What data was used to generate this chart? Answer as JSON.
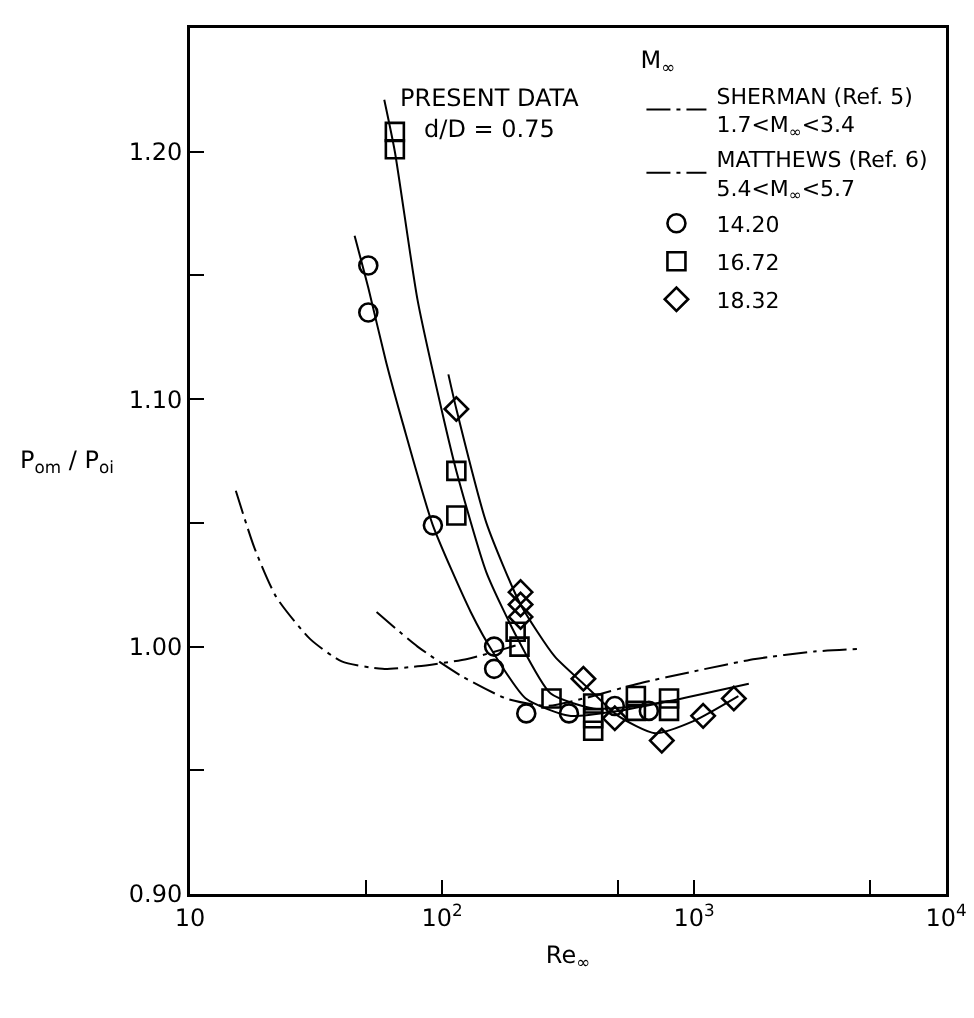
{
  "chart_data": {
    "type": "scatter",
    "xlabel": "Re$_{∞}$",
    "ylabel": "P$_{om}$ / P$_{oi}$",
    "legend_title": "M$_{∞}$",
    "annotations": [
      "PRESENT DATA\nd/D = 0.75"
    ],
    "log": "x",
    "grid": false,
    "legend": "top right",
    "xlim": [
      10,
      10000
    ],
    "xticks": [
      10,
      {
        "value": 50,
        "label": null
      },
      {
        "value": 100,
        "label": "10$^{2}$"
      },
      {
        "value": 500,
        "label": null
      },
      {
        "value": 1000,
        "label": "10$^{3}$"
      },
      {
        "value": 5000,
        "label": null
      },
      {
        "value": 10000,
        "label": "10$^{4}$"
      }
    ],
    "ylim": [
      0.9,
      1.25
    ],
    "yticks": [
      {
        "value": 0.9,
        "label": "0.90"
      },
      {
        "value": 0.95,
        "label": null
      },
      {
        "value": 1.0,
        "label": "1.00"
      },
      {
        "value": 1.05,
        "label": null
      },
      {
        "value": 1.1,
        "label": "1.10"
      },
      {
        "value": 1.15,
        "label": null
      },
      {
        "value": 1.2,
        "label": "1.20"
      }
    ],
    "series": [
      {
        "name": "14.20",
        "marker": "circle",
        "color": "#000000",
        "x": [
          51,
          51,
          92,
          161,
          161,
          216,
          319,
          485,
          662
        ],
        "values": [
          1.154,
          1.135,
          1.049,
          1.0,
          0.991,
          0.973,
          0.973,
          0.976,
          0.974
        ]
      },
      {
        "name": "16.72",
        "marker": "square",
        "color": "#000000",
        "x": [
          65,
          65,
          114,
          114,
          196,
          203,
          272,
          398,
          398,
          398,
          588,
          588,
          796,
          796
        ],
        "values": [
          1.208,
          1.201,
          1.071,
          1.053,
          1.006,
          1.0,
          0.979,
          0.977,
          0.971,
          0.966,
          0.98,
          0.974,
          0.979,
          0.974
        ]
      },
      {
        "name": "18.32",
        "marker": "diamond",
        "color": "#000000",
        "x": [
          114,
          205,
          205,
          205,
          364,
          485,
          745,
          1087,
          1439
        ],
        "values": [
          1.096,
          1.022,
          1.017,
          1.012,
          0.987,
          0.971,
          0.962,
          0.972,
          0.979
        ]
      },
      {
        "name": "SHERMAN (Ref. 5)\n1.7<M$_{∞}$<3.4",
        "type": "line",
        "marker": "none",
        "line_style": "dashed",
        "color": "#000000",
        "x": [
          15.2,
          18,
          22,
          30,
          40,
          58,
          80,
          126,
          205
        ],
        "values": [
          1.063,
          1.04,
          1.02,
          1.003,
          0.994,
          0.991,
          0.992,
          0.995,
          1.001
        ]
      },
      {
        "name": "MATTHEWS (Ref. 6)\n5.4<M$_{∞}$<5.7",
        "type": "line",
        "marker": "none",
        "line_style": "dashed",
        "color": "#000000",
        "x": [
          55,
          80,
          120,
          180,
          260,
          364,
          600,
          1000,
          1750,
          3000,
          4430
        ],
        "values": [
          1.014,
          1.0,
          0.988,
          0.979,
          0.976,
          0.979,
          0.985,
          0.99,
          0.995,
          0.998,
          0.999
        ]
      },
      {
        "type": "line",
        "marker": "none",
        "line_style": "solid",
        "color": "#000000",
        "x": [
          45,
          51,
          60,
          70,
          92,
          130,
          161,
          215,
          320,
          500,
          800,
          1650
        ],
        "values": [
          1.166,
          1.145,
          1.115,
          1.09,
          1.049,
          1.014,
          0.997,
          0.979,
          0.972,
          0.974,
          0.978,
          0.985
        ]
      },
      {
        "type": "line",
        "marker": "none",
        "line_style": "solid",
        "color": "#000000",
        "x": [
          59,
          65,
          80,
          100,
          114,
          150,
          200,
          270,
          400,
          600,
          800
        ],
        "values": [
          1.221,
          1.2,
          1.14,
          1.095,
          1.071,
          1.03,
          1.003,
          0.981,
          0.975,
          0.976,
          0.978
        ]
      },
      {
        "type": "line",
        "marker": "none",
        "line_style": "solid",
        "color": "#000000",
        "x": [
          106,
          114,
          150,
          205,
          280,
          364,
          500,
          700,
          1000,
          1500
        ],
        "values": [
          1.11,
          1.096,
          1.05,
          1.017,
          0.996,
          0.985,
          0.972,
          0.965,
          0.97,
          0.98
        ]
      }
    ]
  }
}
